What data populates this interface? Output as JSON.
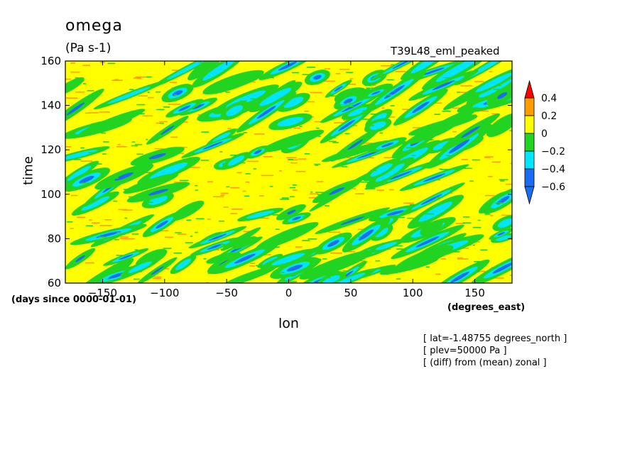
{
  "header": {
    "title": "omega",
    "units": "(Pa s-1)",
    "run_name": "T39L48_eml_peaked"
  },
  "info_lines": [
    "[ lat=-1.48755 degrees_north ]",
    "[ plev=50000 Pa ]",
    "[ (diff) from (mean) zonal ]"
  ],
  "chart_data": {
    "type": "heatmap",
    "xlabel": "lon",
    "ylabel": "time",
    "x_unit": "(degrees_east)",
    "y_unit": "(days since 0000-01-01)",
    "xlim": [
      -180,
      180
    ],
    "ylim": [
      60,
      160
    ],
    "x_ticks": [
      -150,
      -100,
      -50,
      0,
      50,
      100,
      150
    ],
    "y_ticks": [
      60,
      80,
      100,
      120,
      140,
      160
    ],
    "colorbar": {
      "levels": [
        -0.6,
        -0.4,
        -0.2,
        0,
        0.2,
        0.4
      ],
      "labels": [
        "0.4",
        "0.2",
        "0",
        "-0.2",
        "-0.4",
        "-0.6"
      ],
      "colors": [
        "#1a6cf0",
        "#00e5ff",
        "#22d422",
        "#ffff00",
        "#ff9d00",
        "#ff0000"
      ],
      "extend": "both"
    },
    "background_value_range": [
      0,
      0.2
    ],
    "pattern": "eastward-propagating negative (ascending) omega streaks tilted toward later time with increasing longitude"
  }
}
